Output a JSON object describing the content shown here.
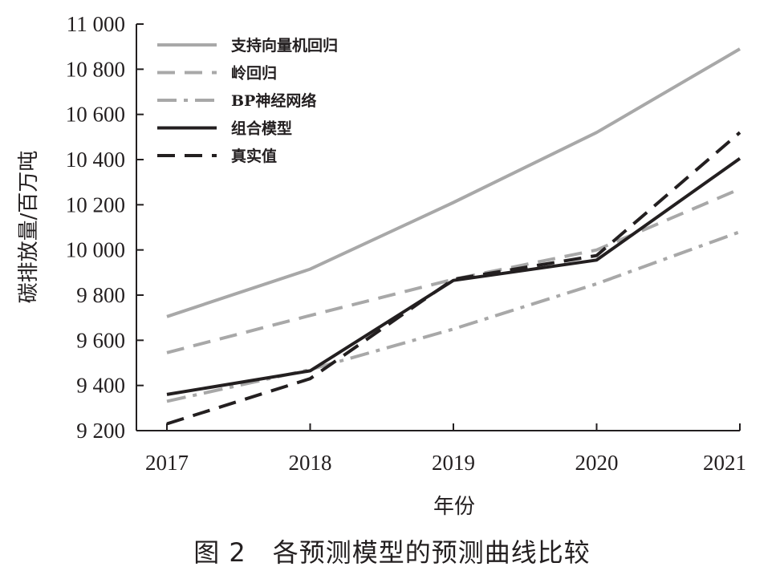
{
  "caption": "图 2　各预测模型的预测曲线比较",
  "chart_data": {
    "type": "line",
    "xlabel": "年份",
    "ylabel": "碳排放量/百万吨",
    "categories": [
      "2017",
      "2018",
      "2019",
      "2020",
      "2021"
    ],
    "ylim": [
      9200,
      11000
    ],
    "yticks": [
      9200,
      9400,
      9600,
      9800,
      10000,
      10200,
      10400,
      10600,
      10800,
      11000
    ],
    "ytick_labels": [
      "9 200",
      "9 400",
      "9 600",
      "9 800",
      "10 000",
      "10 200",
      "10 400",
      "10 600",
      "10 800",
      "11 000"
    ],
    "grid": false,
    "legend_position": "top-left",
    "series": [
      {
        "name": "支持向量机回归",
        "values": [
          9705,
          9915,
          10210,
          10520,
          10890
        ],
        "color": "#a8a8a8",
        "style": "solid"
      },
      {
        "name": "岭回归",
        "values": [
          9545,
          9710,
          9870,
          10000,
          10270
        ],
        "color": "#a8a8a8",
        "style": "dashed"
      },
      {
        "name": "BP神经网络",
        "values": [
          9330,
          9470,
          9650,
          9850,
          10080
        ],
        "color": "#a8a8a8",
        "style": "dashdot"
      },
      {
        "name": "组合模型",
        "values": [
          9360,
          9465,
          9865,
          9955,
          10405
        ],
        "color": "#231f20",
        "style": "solid"
      },
      {
        "name": "真实值",
        "values": [
          9230,
          9430,
          9870,
          9975,
          10520
        ],
        "color": "#231f20",
        "style": "dashed"
      }
    ]
  }
}
